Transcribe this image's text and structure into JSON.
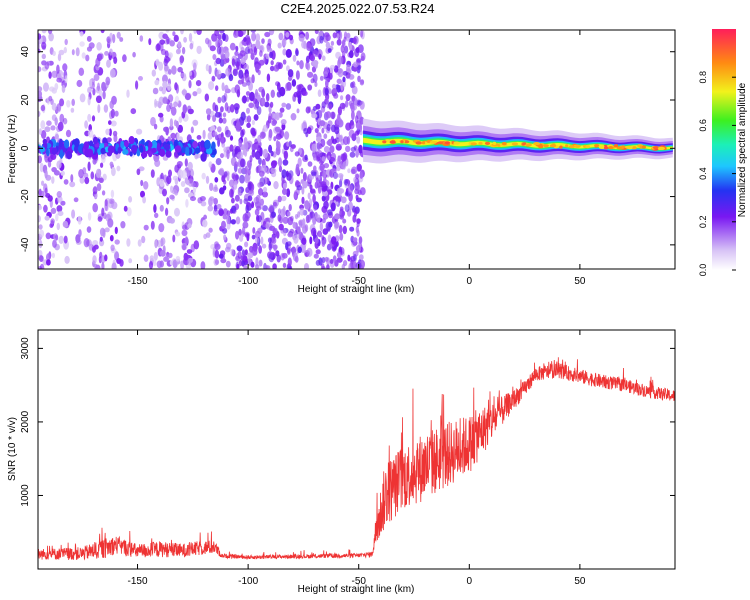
{
  "title": "C2E4.2025.022.07.53.R24",
  "chart_data": [
    {
      "type": "heatmap",
      "xlabel": "Height of straight line (km)",
      "ylabel": "Frequency (Hz)",
      "xlim": [
        -195,
        93
      ],
      "ylim": [
        -50,
        49
      ],
      "xticks": [
        -150,
        -100,
        -50,
        0,
        50
      ],
      "yticks": [
        -40,
        -20,
        0,
        20,
        40
      ],
      "colorbar": {
        "label": "Normalized spectral amplitude",
        "range": [
          0,
          1
        ],
        "ticks": [
          "0.0",
          "0.2",
          "0.4",
          "0.6",
          "0.8"
        ]
      },
      "segments": [
        {
          "x_range": [
            -195,
            -115
          ],
          "noise": "scattered across all frequencies",
          "ridge_center_hz": 0,
          "peak_amplitude": 0.4
        },
        {
          "x_range": [
            -115,
            -48
          ],
          "noise": "dense scattered noise, no ridge"
        },
        {
          "x_range": [
            -48,
            93
          ],
          "noise": "none",
          "ridge_center_hz": [
            3,
            0
          ],
          "peak_amplitude": 0.95
        }
      ]
    },
    {
      "type": "line",
      "xlabel": "Height of straight line (km)",
      "ylabel": "SNR (10 * v/v)",
      "xlim": [
        -195,
        93
      ],
      "ylim": [
        0,
        3250
      ],
      "xticks": [
        -150,
        -100,
        -50,
        0,
        50
      ],
      "yticks": [
        1000,
        2000,
        3000
      ],
      "series": [
        {
          "color": "#ee3333",
          "x": [
            -195,
            -175,
            -165,
            -160,
            -150,
            -140,
            -130,
            -120,
            -115,
            -112,
            -100,
            -80,
            -60,
            -50,
            -44,
            -42,
            -38,
            -30,
            -20,
            -10,
            0,
            5,
            10,
            15,
            20,
            25,
            30,
            40,
            50,
            60,
            70,
            80,
            93
          ],
          "y": [
            200,
            210,
            280,
            330,
            240,
            270,
            250,
            290,
            300,
            180,
            160,
            170,
            180,
            185,
            200,
            550,
            1000,
            1250,
            1400,
            1550,
            1700,
            1850,
            2000,
            2150,
            2300,
            2450,
            2650,
            2700,
            2620,
            2550,
            2500,
            2420,
            2350
          ],
          "spread": [
            150,
            180,
            280,
            250,
            200,
            220,
            190,
            200,
            180,
            60,
            55,
            55,
            60,
            60,
            80,
            500,
            900,
            900,
            950,
            900,
            800,
            700,
            550,
            400,
            280,
            220,
            200,
            200,
            200,
            190,
            180,
            170,
            170
          ]
        }
      ]
    }
  ]
}
